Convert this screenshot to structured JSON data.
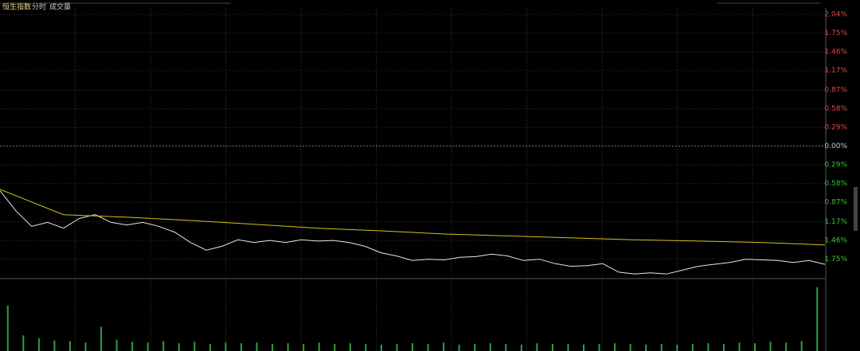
{
  "chart_data": {
    "type": "line",
    "title": "恒生指数",
    "tabs": [
      "分时",
      "成交量"
    ],
    "ylim": [
      -2.05,
      2.14
    ],
    "yticks": [
      {
        "value": 2.04,
        "label": "2.04%"
      },
      {
        "value": 1.75,
        "label": "1.75%"
      },
      {
        "value": 1.46,
        "label": "1.46%"
      },
      {
        "value": 1.17,
        "label": "1.17%"
      },
      {
        "value": 0.87,
        "label": "0.87%"
      },
      {
        "value": 0.58,
        "label": "0.58%"
      },
      {
        "value": 0.29,
        "label": "0.29%"
      },
      {
        "value": 0,
        "label": "0.00%"
      },
      {
        "value": -0.29,
        "label": "0.29%"
      },
      {
        "value": -0.58,
        "label": "0.58%"
      },
      {
        "value": -0.87,
        "label": "0.87%"
      },
      {
        "value": -1.17,
        "label": "1.17%"
      },
      {
        "value": -1.46,
        "label": "1.46%"
      },
      {
        "value": -1.75,
        "label": "1.75%"
      }
    ],
    "grid": true,
    "series": [
      {
        "color": "#e6e6e6",
        "values": [
          -0.69,
          -1.0,
          -1.24,
          -1.18,
          -1.27,
          -1.12,
          -1.06,
          -1.18,
          -1.22,
          -1.18,
          -1.24,
          -1.33,
          -1.49,
          -1.61,
          -1.55,
          -1.45,
          -1.49,
          -1.46,
          -1.49,
          -1.45,
          -1.47,
          -1.46,
          -1.49,
          -1.55,
          -1.65,
          -1.7,
          -1.77,
          -1.75,
          -1.76,
          -1.72,
          -1.71,
          -1.67,
          -1.7,
          -1.77,
          -1.75,
          -1.82,
          -1.86,
          -1.85,
          -1.82,
          -1.95,
          -1.98,
          -1.96,
          -1.98,
          -1.92,
          -1.86,
          -1.83,
          -1.8,
          -1.75,
          -1.76,
          -1.77,
          -1.8,
          -1.77,
          -1.83
        ]
      },
      {
        "color": "#d4c21a",
        "values": [
          -0.67,
          -1.06,
          -1.1,
          -1.15,
          -1.21,
          -1.27,
          -1.31,
          -1.36,
          -1.39,
          -1.42,
          -1.45,
          -1.47,
          -1.49,
          -1.53
        ]
      }
    ],
    "volume": {
      "type": "bar",
      "color": "#2ea043",
      "ylim": [
        0,
        100
      ],
      "values": [
        64,
        22,
        18,
        15,
        14,
        12,
        34,
        16,
        13,
        12,
        14,
        11,
        13,
        10,
        12,
        11,
        12,
        10,
        11,
        10,
        12,
        10,
        11,
        10,
        9,
        10,
        11,
        10,
        12,
        9,
        10,
        11,
        10,
        9,
        11,
        10,
        10,
        9,
        10,
        11,
        10,
        9,
        10,
        9,
        10,
        11,
        10,
        12,
        11,
        13,
        12,
        14,
        90
      ]
    }
  }
}
